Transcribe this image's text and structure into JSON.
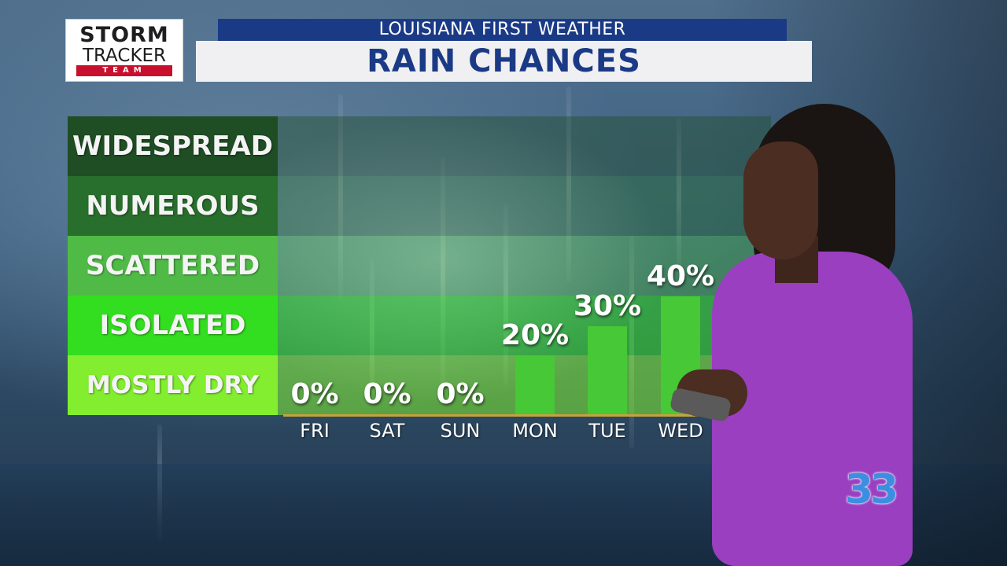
{
  "header": {
    "logo_line1": "STORM",
    "logo_line2": "TRACKER",
    "logo_line3": "TEAM",
    "subtitle": "LOUISIANA FIRST WEATHER",
    "title": "RAIN CHANCES"
  },
  "colors": {
    "title_blue": "#1b3a86",
    "bar_green": "#47c836",
    "logo_red": "#c8102e"
  },
  "legend_levels": [
    {
      "label": "WIDESPREAD",
      "color": "#1f4d24"
    },
    {
      "label": "NUMEROUS",
      "color": "#286e2c"
    },
    {
      "label": "SCATTERED",
      "color": "#4fbb46"
    },
    {
      "label": "ISOLATED",
      "color": "#33dd1f"
    },
    {
      "label": "MOSTLY DRY",
      "color": "#82ee2f"
    }
  ],
  "chart_data": {
    "type": "bar",
    "categories": [
      "FRI",
      "SAT",
      "SUN",
      "MON",
      "TUE",
      "WED"
    ],
    "values": [
      0,
      0,
      0,
      20,
      30,
      40
    ],
    "value_labels": [
      "0%",
      "0%",
      "0%",
      "20%",
      "30%",
      "40%"
    ],
    "ylim": [
      0,
      100
    ],
    "grid": false
  },
  "station_logo": "33"
}
